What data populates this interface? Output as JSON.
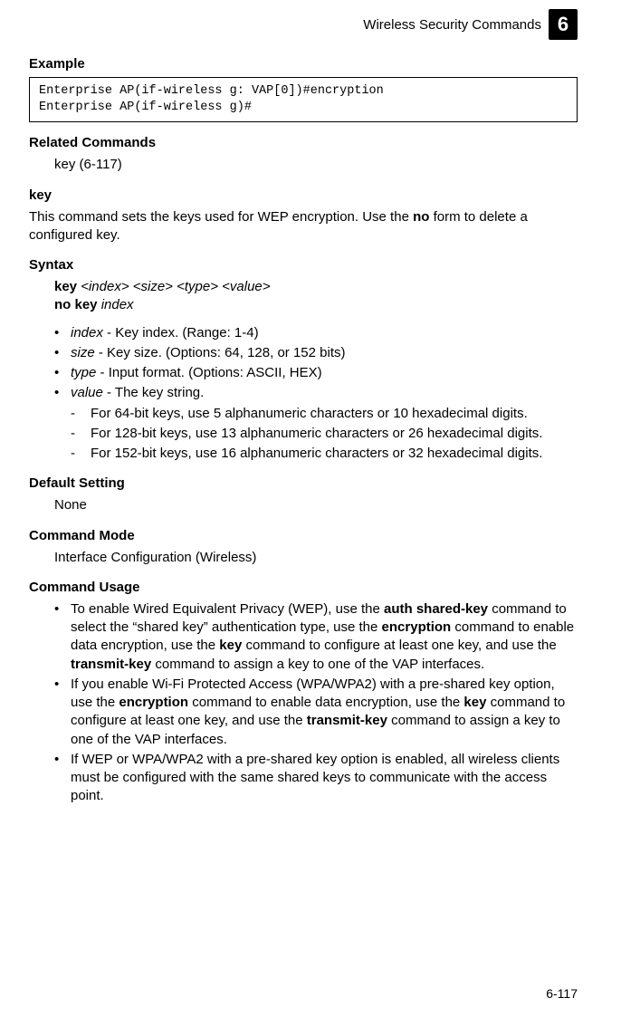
{
  "header": {
    "title": "Wireless Security Commands",
    "chapter": "6"
  },
  "example": {
    "heading": "Example",
    "code": "Enterprise AP(if-wireless g: VAP[0])#encryption\nEnterprise AP(if-wireless g)#"
  },
  "related": {
    "heading": "Related Commands",
    "text": "key (6-117)"
  },
  "key_section": {
    "heading": "key",
    "desc_pre": "This command sets the keys used for WEP encryption. Use the ",
    "desc_bold": "no",
    "desc_post": " form to delete a configured key."
  },
  "syntax": {
    "heading": "Syntax",
    "line1_bold": "key",
    "line1_args": " <index> <size> <type> <value>",
    "line2_bold": "no key",
    "line2_args": " index",
    "params": {
      "index": {
        "name": "index",
        "desc": " - Key index. (Range: 1-4)"
      },
      "size": {
        "name": "size",
        "desc": " - Key size. (Options: 64, 128, or 152 bits)"
      },
      "type": {
        "name": "type",
        "desc": " - Input format. (Options: ASCII, HEX)"
      },
      "value": {
        "name": "value",
        "desc": " - The key string."
      }
    },
    "subitems": {
      "a": "For 64-bit keys, use 5 alphanumeric characters or 10 hexadecimal digits.",
      "b": "For 128-bit keys, use 13 alphanumeric characters or 26 hexadecimal digits.",
      "c": "For 152-bit keys, use 16 alphanumeric characters or 32 hexadecimal digits."
    }
  },
  "default_setting": {
    "heading": "Default Setting",
    "value": "None"
  },
  "command_mode": {
    "heading": "Command Mode",
    "value": "Interface Configuration (Wireless)"
  },
  "command_usage": {
    "heading": "Command Usage",
    "item1": {
      "p1": "To enable Wired Equivalent Privacy (WEP), use the ",
      "b1": "auth shared-key",
      "p2": " command to select the “shared key” authentication type, use the ",
      "b2": "encryption",
      "p3": " command to enable data encryption, use the ",
      "b3": "key",
      "p4": " command to configure at least one key, and use the ",
      "b4": "transmit-key",
      "p5": " command to assign a key to one of the VAP interfaces."
    },
    "item2": {
      "p1": "If you enable Wi-Fi Protected Access (WPA/WPA2) with a pre-shared key option, use the ",
      "b1": "encryption",
      "p2": " command to enable data encryption, use the ",
      "b2": "key",
      "p3": " command to configure at least one key, and use the ",
      "b3": "transmit-key",
      "p4": " command to assign a key to one of the VAP interfaces."
    },
    "item3": "If WEP or WPA/WPA2 with a pre-shared key option is enabled, all wireless clients must be configured with the same shared keys to communicate with the access point."
  },
  "footer": {
    "page": "6-117"
  }
}
